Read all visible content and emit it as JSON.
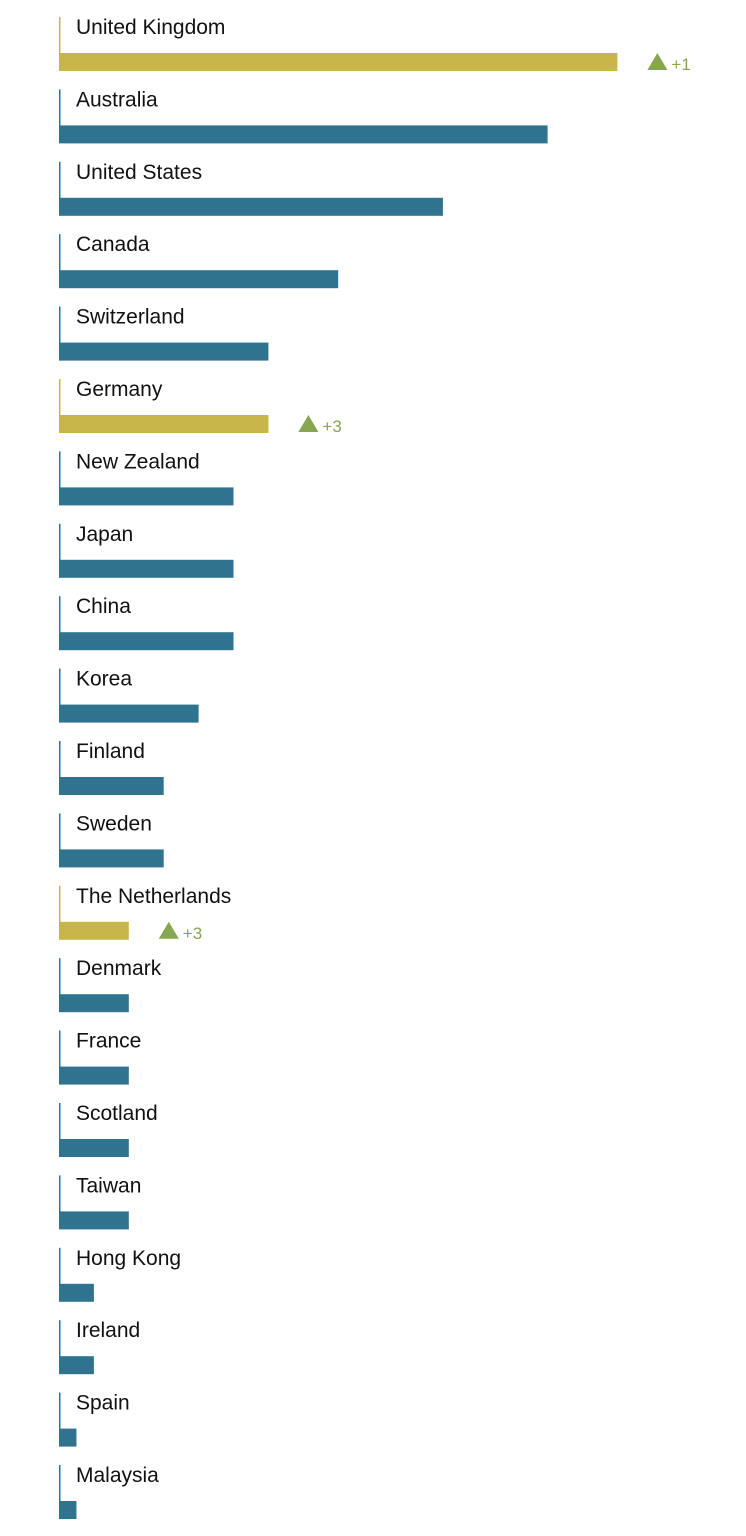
{
  "colors": {
    "default_bar": "#2f738e",
    "highlight_bar": "#c8b649",
    "up_marker": "#86a64f",
    "axis_line": "#2f738e",
    "label_text": "#111111"
  },
  "chart_data": {
    "type": "bar",
    "orientation": "horizontal",
    "title": "",
    "xlabel": "",
    "ylabel": "",
    "xlim": [
      0,
      16
    ],
    "grid": false,
    "legend": "none",
    "categories": [
      "United Kingdom",
      "Australia",
      "United States",
      "Canada",
      "Switzerland",
      "Germany",
      "New Zealand",
      "Japan",
      "China",
      "Korea",
      "Finland",
      "Sweden",
      "The Netherlands",
      "Denmark",
      "France",
      "Scotland",
      "Taiwan",
      "Hong Kong",
      "Ireland",
      "Spain",
      "Malaysia"
    ],
    "values": [
      16,
      14,
      11,
      8,
      6,
      6,
      5,
      5,
      5,
      4,
      3,
      3,
      2,
      2,
      2,
      2,
      2,
      1,
      1,
      0.5,
      0.5
    ],
    "highlighted": [
      "United Kingdom",
      "Germany",
      "The Netherlands"
    ],
    "rank_changes": [
      {
        "category": "United Kingdom",
        "direction": "up",
        "label": "+1"
      },
      {
        "category": "Germany",
        "direction": "up",
        "label": "+3"
      },
      {
        "category": "The Netherlands",
        "direction": "up",
        "label": "+3"
      }
    ]
  }
}
